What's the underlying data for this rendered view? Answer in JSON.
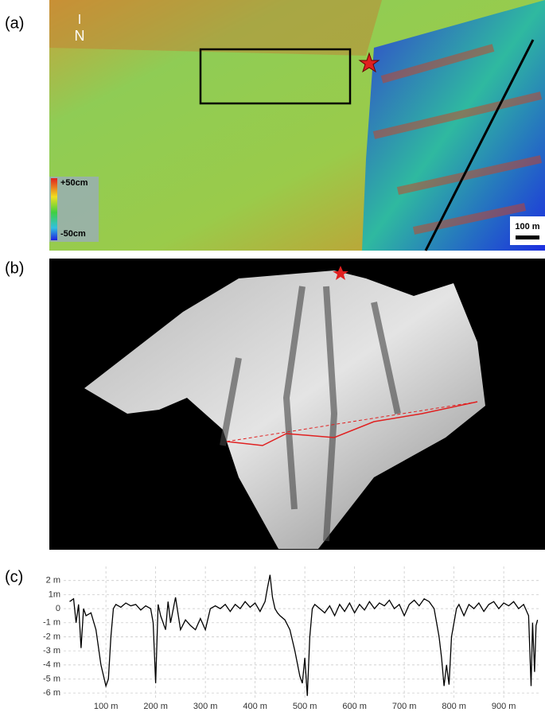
{
  "panels": {
    "a": {
      "label": "(a)",
      "north": "N",
      "colorbar_max": "+50cm",
      "colorbar_min": "-50cm",
      "scale_bar": "100 m"
    },
    "b": {
      "label": "(b)"
    },
    "c": {
      "label": "(c)"
    }
  },
  "chart_data": {
    "type": "line",
    "x": [
      27,
      35,
      40,
      45,
      50,
      55,
      60,
      70,
      80,
      90,
      100,
      105,
      110,
      115,
      120,
      130,
      140,
      150,
      160,
      170,
      180,
      190,
      195,
      200,
      205,
      210,
      220,
      225,
      230,
      240,
      250,
      260,
      270,
      280,
      290,
      300,
      310,
      320,
      330,
      340,
      350,
      360,
      370,
      380,
      390,
      400,
      410,
      420,
      425,
      430,
      435,
      440,
      445,
      450,
      460,
      470,
      480,
      490,
      495,
      500,
      505,
      510,
      515,
      520,
      530,
      540,
      550,
      560,
      570,
      580,
      590,
      600,
      610,
      620,
      630,
      640,
      650,
      660,
      670,
      680,
      690,
      700,
      710,
      720,
      730,
      740,
      750,
      760,
      765,
      770,
      775,
      780,
      785,
      790,
      795,
      800,
      805,
      810,
      820,
      830,
      840,
      850,
      860,
      870,
      880,
      890,
      900,
      910,
      920,
      930,
      940,
      950,
      955,
      958,
      962,
      965,
      968
    ],
    "series": [
      {
        "color": "#000000",
        "values": [
          0.5,
          0.7,
          -1,
          0.3,
          -2.8,
          0,
          -0.5,
          -0.3,
          -1.5,
          -4,
          -5.5,
          -5,
          -2,
          0,
          0.3,
          0.1,
          0.4,
          0.2,
          0.3,
          -0.1,
          0.2,
          0,
          -1,
          -5.3,
          0.3,
          -0.5,
          -1.5,
          0.5,
          -1,
          0.8,
          -1.5,
          -0.8,
          -1.2,
          -1.5,
          -0.7,
          -1.5,
          0,
          0.2,
          0,
          0.3,
          -0.2,
          0.3,
          0,
          0.5,
          0.1,
          0.4,
          -0.2,
          0.5,
          1.5,
          2.4,
          0.8,
          0,
          -0.3,
          -0.5,
          -0.8,
          -1.5,
          -3,
          -4.8,
          -5.3,
          -3.5,
          -6.2,
          -2,
          0,
          0.3,
          0,
          -0.3,
          0.2,
          -0.5,
          0.3,
          -0.2,
          0.4,
          -0.3,
          0.3,
          -0.1,
          0.5,
          0,
          0.4,
          0.2,
          0.6,
          0,
          0.3,
          -0.5,
          0.3,
          0.6,
          0.2,
          0.7,
          0.5,
          0,
          -1,
          -2,
          -3.5,
          -5.5,
          -4,
          -5.4,
          -2,
          -1,
          0,
          0.3,
          -0.5,
          0.3,
          0,
          0.4,
          -0.2,
          0.3,
          0.5,
          0,
          0.4,
          0.2,
          0.5,
          0,
          0.3,
          -0.5,
          -5.5,
          -1,
          -4.5,
          -1.2,
          -0.8
        ]
      }
    ],
    "xlim": [
      15,
      975
    ],
    "xticks": [
      {
        "value": 100,
        "label": "100 m"
      },
      {
        "value": 200,
        "label": "200 m"
      },
      {
        "value": 300,
        "label": "300 m"
      },
      {
        "value": 400,
        "label": "400 m"
      },
      {
        "value": 500,
        "label": "500 m"
      },
      {
        "value": 600,
        "label": "600 m"
      },
      {
        "value": 700,
        "label": "700 m"
      },
      {
        "value": 800,
        "label": "800 m"
      },
      {
        "value": 900,
        "label": "900 m"
      }
    ],
    "ylim": [
      -6.5,
      3
    ],
    "yticks": [
      {
        "value": 2,
        "label": "2 m"
      },
      {
        "value": 1,
        "label": "1m"
      },
      0,
      {
        "value": -1,
        "label": "-1 m"
      },
      {
        "value": -2,
        "label": "-2 m"
      },
      {
        "value": -3,
        "label": "-3 m"
      },
      {
        "value": -4,
        "label": "-4 m"
      },
      {
        "value": -5,
        "label": "-5 m"
      },
      {
        "value": -6,
        "label": "-6 m"
      }
    ],
    "grid": true
  }
}
